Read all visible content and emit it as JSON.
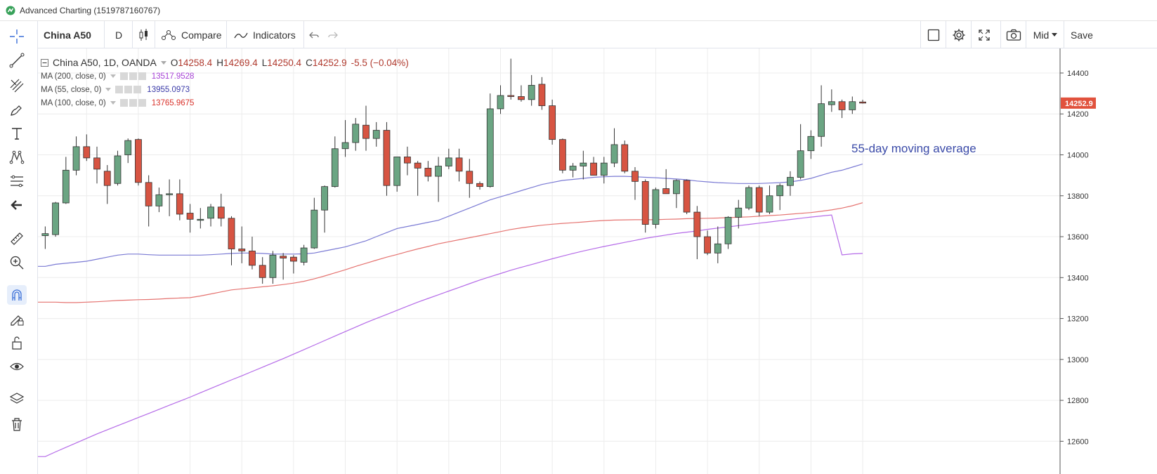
{
  "window": {
    "title": "Advanced Charting (1519787160767)"
  },
  "toolbar": {
    "symbol": "China A50",
    "interval": "D",
    "compare_label": "Compare",
    "indicators_label": "Indicators",
    "mid_label": "Mid",
    "save_label": "Save"
  },
  "legend": {
    "main": {
      "name": "China A50, 1D, OANDA",
      "o_label": "O",
      "o": "14258.4",
      "h_label": "H",
      "h": "14269.4",
      "l_label": "L",
      "l": "14250.4",
      "c_label": "C",
      "c": "14252.9",
      "change": "-5.5 (−0.04%)"
    },
    "ma": [
      {
        "label": "MA (200, close, 0)",
        "value": "13517.9528",
        "color": "#a742d6"
      },
      {
        "label": "MA (55, close, 0)",
        "value": "13955.0973",
        "color": "#3a3aa8"
      },
      {
        "label": "MA (100, close, 0)",
        "value": "13765.9675",
        "color": "#d9312a"
      }
    ]
  },
  "annotation": "55-day moving average",
  "price_label": "14252.9",
  "colors": {
    "up": "#6ba583",
    "down": "#d75442",
    "ma55": "#7a7ad4",
    "ma100": "#e57370",
    "ma200": "#b56be8",
    "price_badge": "#e1523d"
  },
  "chart_data": {
    "type": "candlestick",
    "ylim": [
      12440,
      14520
    ],
    "yticks": [
      12600,
      12800,
      13000,
      13200,
      13400,
      13600,
      13800,
      14000,
      14200,
      14400
    ],
    "candles": [
      {
        "o": 13605,
        "h": 13650,
        "l": 13540,
        "c": 13615
      },
      {
        "o": 13610,
        "h": 13770,
        "l": 13600,
        "c": 13765
      },
      {
        "o": 13765,
        "h": 13990,
        "l": 13760,
        "c": 13925
      },
      {
        "o": 13925,
        "h": 14090,
        "l": 13900,
        "c": 14040
      },
      {
        "o": 14040,
        "h": 14100,
        "l": 13970,
        "c": 13985
      },
      {
        "o": 13985,
        "h": 14040,
        "l": 13860,
        "c": 13930
      },
      {
        "o": 13920,
        "h": 13950,
        "l": 13760,
        "c": 13850
      },
      {
        "o": 13860,
        "h": 14020,
        "l": 13850,
        "c": 13995
      },
      {
        "o": 14000,
        "h": 14080,
        "l": 13960,
        "c": 14070
      },
      {
        "o": 14075,
        "h": 14080,
        "l": 13850,
        "c": 13865
      },
      {
        "o": 13865,
        "h": 13900,
        "l": 13650,
        "c": 13750
      },
      {
        "o": 13750,
        "h": 13840,
        "l": 13720,
        "c": 13805
      },
      {
        "o": 13805,
        "h": 13880,
        "l": 13700,
        "c": 13810
      },
      {
        "o": 13810,
        "h": 13880,
        "l": 13680,
        "c": 13710
      },
      {
        "o": 13715,
        "h": 13760,
        "l": 13620,
        "c": 13685
      },
      {
        "o": 13680,
        "h": 13740,
        "l": 13640,
        "c": 13685
      },
      {
        "o": 13690,
        "h": 13760,
        "l": 13650,
        "c": 13745
      },
      {
        "o": 13745,
        "h": 13810,
        "l": 13650,
        "c": 13690
      },
      {
        "o": 13690,
        "h": 13700,
        "l": 13460,
        "c": 13540
      },
      {
        "o": 13540,
        "h": 13650,
        "l": 13470,
        "c": 13530
      },
      {
        "o": 13530,
        "h": 13600,
        "l": 13440,
        "c": 13460
      },
      {
        "o": 13460,
        "h": 13500,
        "l": 13370,
        "c": 13400
      },
      {
        "o": 13400,
        "h": 13530,
        "l": 13370,
        "c": 13510
      },
      {
        "o": 13505,
        "h": 13520,
        "l": 13390,
        "c": 13495
      },
      {
        "o": 13500,
        "h": 13510,
        "l": 13420,
        "c": 13480
      },
      {
        "o": 13475,
        "h": 13560,
        "l": 13460,
        "c": 13545
      },
      {
        "o": 13545,
        "h": 13790,
        "l": 13540,
        "c": 13730
      },
      {
        "o": 13730,
        "h": 13850,
        "l": 13620,
        "c": 13845
      },
      {
        "o": 13845,
        "h": 14090,
        "l": 13840,
        "c": 14030
      },
      {
        "o": 14030,
        "h": 14170,
        "l": 13990,
        "c": 14060
      },
      {
        "o": 14060,
        "h": 14180,
        "l": 14020,
        "c": 14150
      },
      {
        "o": 14145,
        "h": 14240,
        "l": 14020,
        "c": 14080
      },
      {
        "o": 14080,
        "h": 14160,
        "l": 14040,
        "c": 14120
      },
      {
        "o": 14120,
        "h": 14160,
        "l": 13800,
        "c": 13850
      },
      {
        "o": 13850,
        "h": 13990,
        "l": 13820,
        "c": 13990
      },
      {
        "o": 13990,
        "h": 14040,
        "l": 13900,
        "c": 13960
      },
      {
        "o": 13960,
        "h": 13970,
        "l": 13800,
        "c": 13935
      },
      {
        "o": 13935,
        "h": 13970,
        "l": 13870,
        "c": 13895
      },
      {
        "o": 13895,
        "h": 13990,
        "l": 13770,
        "c": 13945
      },
      {
        "o": 13945,
        "h": 14030,
        "l": 13930,
        "c": 13985
      },
      {
        "o": 13985,
        "h": 14030,
        "l": 13870,
        "c": 13920
      },
      {
        "o": 13920,
        "h": 13980,
        "l": 13790,
        "c": 13860
      },
      {
        "o": 13860,
        "h": 13870,
        "l": 13830,
        "c": 13845
      },
      {
        "o": 13845,
        "h": 14300,
        "l": 13840,
        "c": 14225
      },
      {
        "o": 14225,
        "h": 14340,
        "l": 14200,
        "c": 14290
      },
      {
        "o": 14290,
        "h": 14470,
        "l": 14270,
        "c": 14285
      },
      {
        "o": 14285,
        "h": 14340,
        "l": 14260,
        "c": 14270
      },
      {
        "o": 14270,
        "h": 14390,
        "l": 14240,
        "c": 14340
      },
      {
        "o": 14345,
        "h": 14380,
        "l": 14220,
        "c": 14240
      },
      {
        "o": 14240,
        "h": 14270,
        "l": 14050,
        "c": 14075
      },
      {
        "o": 14075,
        "h": 14080,
        "l": 13910,
        "c": 13925
      },
      {
        "o": 13925,
        "h": 13960,
        "l": 13890,
        "c": 13945
      },
      {
        "o": 13945,
        "h": 14020,
        "l": 13880,
        "c": 13960
      },
      {
        "o": 13960,
        "h": 13990,
        "l": 13900,
        "c": 13900
      },
      {
        "o": 13900,
        "h": 13990,
        "l": 13860,
        "c": 13960
      },
      {
        "o": 13960,
        "h": 14130,
        "l": 13940,
        "c": 14050
      },
      {
        "o": 14050,
        "h": 14070,
        "l": 13910,
        "c": 13920
      },
      {
        "o": 13920,
        "h": 13940,
        "l": 13780,
        "c": 13870
      },
      {
        "o": 13870,
        "h": 13880,
        "l": 13620,
        "c": 13660
      },
      {
        "o": 13660,
        "h": 13840,
        "l": 13640,
        "c": 13830
      },
      {
        "o": 13835,
        "h": 13930,
        "l": 13810,
        "c": 13810
      },
      {
        "o": 13810,
        "h": 13880,
        "l": 13740,
        "c": 13875
      },
      {
        "o": 13875,
        "h": 13880,
        "l": 13710,
        "c": 13720
      },
      {
        "o": 13720,
        "h": 13750,
        "l": 13490,
        "c": 13600
      },
      {
        "o": 13600,
        "h": 13630,
        "l": 13510,
        "c": 13520
      },
      {
        "o": 13520,
        "h": 13650,
        "l": 13470,
        "c": 13565
      },
      {
        "o": 13565,
        "h": 13700,
        "l": 13540,
        "c": 13695
      },
      {
        "o": 13695,
        "h": 13780,
        "l": 13640,
        "c": 13740
      },
      {
        "o": 13740,
        "h": 13850,
        "l": 13730,
        "c": 13840
      },
      {
        "o": 13840,
        "h": 13850,
        "l": 13700,
        "c": 13720
      },
      {
        "o": 13720,
        "h": 13850,
        "l": 13710,
        "c": 13800
      },
      {
        "o": 13800,
        "h": 13860,
        "l": 13730,
        "c": 13850
      },
      {
        "o": 13850,
        "h": 13920,
        "l": 13800,
        "c": 13890
      },
      {
        "o": 13890,
        "h": 14150,
        "l": 13880,
        "c": 14020
      },
      {
        "o": 14020,
        "h": 14120,
        "l": 13980,
        "c": 14090
      },
      {
        "o": 14090,
        "h": 14340,
        "l": 14040,
        "c": 14250
      },
      {
        "o": 14245,
        "h": 14320,
        "l": 14210,
        "c": 14260
      },
      {
        "o": 14260,
        "h": 14270,
        "l": 14180,
        "c": 14220
      },
      {
        "o": 14220,
        "h": 14285,
        "l": 14200,
        "c": 14260
      },
      {
        "o": 14258.4,
        "h": 14269.4,
        "l": 14250.4,
        "c": 14252.9
      }
    ],
    "ma55": [
      13455,
      13465,
      13470,
      13475,
      13480,
      13490,
      13500,
      13510,
      13515,
      13515,
      13512,
      13510,
      13510,
      13510,
      13510,
      13510,
      13512,
      13515,
      13518,
      13520,
      13520,
      13518,
      13515,
      13515,
      13515,
      13516,
      13520,
      13530,
      13540,
      13550,
      13565,
      13580,
      13600,
      13620,
      13640,
      13650,
      13660,
      13670,
      13680,
      13700,
      13720,
      13740,
      13760,
      13780,
      13795,
      13810,
      13825,
      13840,
      13855,
      13865,
      13875,
      13880,
      13885,
      13890,
      13893,
      13895,
      13895,
      13893,
      13890,
      13888,
      13885,
      13882,
      13878,
      13872,
      13868,
      13864,
      13862,
      13860,
      13860,
      13860,
      13862,
      13864,
      13868,
      13875,
      13885,
      13900,
      13915,
      13925,
      13940,
      13955.0973
    ],
    "ma100": [
      13280,
      13280,
      13278,
      13278,
      13280,
      13282,
      13285,
      13288,
      13290,
      13292,
      13293,
      13295,
      13298,
      13300,
      13302,
      13310,
      13320,
      13330,
      13340,
      13345,
      13350,
      13355,
      13360,
      13366,
      13373,
      13382,
      13394,
      13408,
      13423,
      13438,
      13455,
      13470,
      13485,
      13500,
      13513,
      13527,
      13540,
      13552,
      13565,
      13575,
      13585,
      13595,
      13605,
      13615,
      13625,
      13635,
      13643,
      13650,
      13656,
      13661,
      13665,
      13668,
      13672,
      13676,
      13679,
      13681,
      13682,
      13683,
      13683,
      13683,
      13685,
      13686,
      13688,
      13689,
      13690,
      13691,
      13693,
      13695,
      13697,
      13700,
      13703,
      13706,
      13710,
      13714,
      13718,
      13724,
      13731,
      13740,
      13751,
      13765.9675
    ],
    "ma200": [
      12525,
      12548,
      12570,
      12592,
      12614,
      12636,
      12656,
      12676,
      12696,
      12716,
      12736,
      12756,
      12776,
      12796,
      12816,
      12837,
      12858,
      12879,
      12900,
      12920,
      12941,
      12962,
      12983,
      13004,
      13026,
      13048,
      13070,
      13092,
      13114,
      13136,
      13158,
      13180,
      13200,
      13220,
      13240,
      13260,
      13280,
      13298,
      13316,
      13334,
      13352,
      13370,
      13388,
      13404,
      13420,
      13436,
      13450,
      13464,
      13478,
      13492,
      13505,
      13518,
      13530,
      13541,
      13552,
      13562,
      13572,
      13582,
      13592,
      13600,
      13608,
      13616,
      13622,
      13628,
      13636,
      13642,
      13648,
      13654,
      13660,
      13666,
      13672,
      13678,
      13684,
      13690,
      13696,
      13701,
      13706,
      13511,
      13516,
      13517.9528
    ]
  }
}
